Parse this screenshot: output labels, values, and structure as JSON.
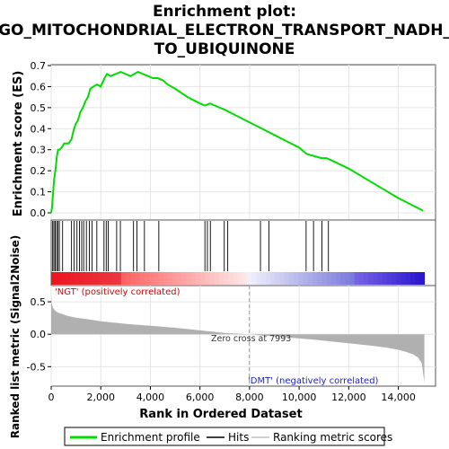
{
  "title_line1": "Enrichment plot:",
  "title_line2": "GO_MITOCHONDRIAL_ELECTRON_TRANSPORT_NADH_",
  "title_line3": "TO_UBIQUINONE",
  "colors": {
    "es_line": "#00dd00",
    "hit_line": "#000000",
    "metric_fill": "#b0b0b0",
    "pos_label": "#dd0000",
    "neg_label": "#2222cc",
    "zero_line": "#999999"
  },
  "chart_data": [
    {
      "type": "line",
      "name": "enrichment-score",
      "ylabel": "Enrichment score (ES)",
      "ylim": [
        0,
        0.7
      ],
      "yticks": [
        0.0,
        0.1,
        0.2,
        0.3,
        0.4,
        0.5,
        0.6,
        0.7
      ],
      "xlim": [
        0,
        15500
      ],
      "grid": true,
      "series": [
        {
          "name": "Enrichment profile",
          "x": [
            0,
            40,
            80,
            120,
            180,
            230,
            280,
            330,
            420,
            520,
            700,
            820,
            900,
            980,
            1080,
            1180,
            1280,
            1380,
            1480,
            1580,
            1700,
            1850,
            2000,
            2150,
            2250,
            2400,
            2600,
            2800,
            3000,
            3200,
            3350,
            3500,
            3700,
            3900,
            4100,
            4300,
            4500,
            4700,
            5000,
            5500,
            6000,
            6200,
            6400,
            6600,
            7000,
            7500,
            8000,
            8500,
            9000,
            9500,
            10000,
            10300,
            10600,
            10900,
            11100,
            11300,
            12000,
            13000,
            14000,
            15000
          ],
          "y": [
            0.0,
            0.03,
            0.1,
            0.16,
            0.21,
            0.27,
            0.3,
            0.3,
            0.31,
            0.33,
            0.33,
            0.35,
            0.39,
            0.42,
            0.44,
            0.48,
            0.5,
            0.53,
            0.55,
            0.59,
            0.6,
            0.61,
            0.6,
            0.64,
            0.66,
            0.65,
            0.66,
            0.67,
            0.66,
            0.65,
            0.66,
            0.67,
            0.66,
            0.65,
            0.64,
            0.64,
            0.63,
            0.61,
            0.59,
            0.55,
            0.52,
            0.51,
            0.52,
            0.51,
            0.49,
            0.46,
            0.43,
            0.4,
            0.37,
            0.34,
            0.31,
            0.28,
            0.27,
            0.26,
            0.26,
            0.25,
            0.21,
            0.14,
            0.07,
            0.01
          ]
        }
      ]
    },
    {
      "type": "scatter",
      "name": "hits",
      "xlim": [
        0,
        15500
      ],
      "series": [
        {
          "name": "Hits",
          "x": [
            60,
            110,
            160,
            220,
            270,
            330,
            460,
            820,
            920,
            1040,
            1140,
            1230,
            1310,
            1420,
            1540,
            1650,
            1840,
            2130,
            2220,
            2300,
            2640,
            2790,
            3320,
            3460,
            3760,
            4340,
            6200,
            6300,
            6420,
            6980,
            7120,
            8440,
            8780,
            10280,
            10580,
            10920,
            11180
          ]
        }
      ]
    },
    {
      "type": "area",
      "name": "ranked-list-metric",
      "ylabel": "Ranked list metric (Signal2Noise)",
      "xlabel": "Rank in Ordered Dataset",
      "ylim": [
        -0.8,
        0.75
      ],
      "yticks": [
        -0.5,
        0.0,
        0.5
      ],
      "xlim": [
        0,
        15500
      ],
      "xticks": [
        0,
        2000,
        4000,
        6000,
        8000,
        10000,
        12000,
        14000
      ],
      "grid": true,
      "annotations": {
        "pos_label": "'NGT' (positively correlated)",
        "neg_label": "'DMT' (negatively correlated)",
        "zero_cross": "Zero cross at 7993",
        "zero_cross_x": 7993
      },
      "series": [
        {
          "name": "Ranking metric scores",
          "x": [
            0,
            20,
            60,
            120,
            200,
            300,
            450,
            600,
            800,
            1000,
            1300,
            1600,
            2000,
            2500,
            3000,
            3500,
            4000,
            4500,
            5000,
            5500,
            6000,
            6500,
            7000,
            7500,
            7993,
            8500,
            9000,
            9500,
            10000,
            10500,
            11000,
            11500,
            12000,
            12500,
            13000,
            13500,
            14000,
            14300,
            14600,
            14800,
            14950,
            15050
          ],
          "y": [
            0.58,
            0.48,
            0.42,
            0.38,
            0.35,
            0.33,
            0.31,
            0.29,
            0.27,
            0.255,
            0.24,
            0.225,
            0.2,
            0.18,
            0.16,
            0.145,
            0.13,
            0.115,
            0.1,
            0.08,
            0.06,
            0.04,
            0.02,
            0.01,
            0.0,
            -0.02,
            -0.035,
            -0.05,
            -0.065,
            -0.08,
            -0.1,
            -0.12,
            -0.14,
            -0.16,
            -0.18,
            -0.205,
            -0.24,
            -0.27,
            -0.31,
            -0.36,
            -0.45,
            -0.75
          ]
        }
      ]
    }
  ],
  "legend": {
    "items": [
      {
        "label": "Enrichment profile",
        "color": "#00dd00"
      },
      {
        "label": "Hits",
        "color": "#000000"
      },
      {
        "label": "Ranking metric scores",
        "color": "#c0c0c0"
      }
    ]
  }
}
